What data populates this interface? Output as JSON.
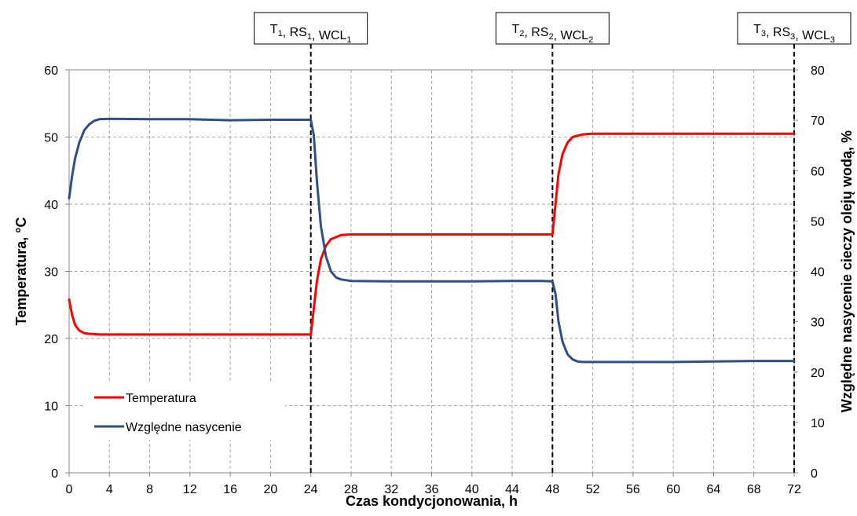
{
  "chart_data": {
    "type": "line",
    "xlabel": "Czas kondycjonowania, h",
    "ylabel_left": "Temperatura, °C",
    "ylabel_right": "Względne nasycenie cieczy olejų wodą, %",
    "xlim": [
      0,
      72
    ],
    "ylim_left": [
      0,
      60
    ],
    "ylim_right": [
      0,
      80
    ],
    "x_ticks": [
      "0",
      "4",
      "8",
      "12",
      "16",
      "20",
      "24",
      "28",
      "32",
      "36",
      "40",
      "44",
      "48",
      "52",
      "56",
      "60",
      "64",
      "68",
      "72"
    ],
    "y_left_ticks": [
      "0",
      "10",
      "20",
      "30",
      "40",
      "50",
      "60"
    ],
    "y_right_ticks": [
      "0",
      "10",
      "20",
      "30",
      "40",
      "50",
      "60",
      "70",
      "80"
    ],
    "grid": true,
    "legend_position": "bottom-left",
    "series": [
      {
        "name": "Temperatura",
        "axis": "left",
        "color": "#ff0000",
        "x": [
          0,
          0.3,
          0.6,
          1,
          1.5,
          2,
          3,
          4,
          8,
          12,
          16,
          20,
          23,
          24,
          24.3,
          24.6,
          25,
          25.5,
          26,
          27,
          28,
          32,
          36,
          40,
          44,
          47,
          48,
          48.3,
          48.6,
          49,
          49.5,
          50,
          51,
          52,
          56,
          60,
          64,
          68,
          72
        ],
        "values": [
          25.8,
          23.5,
          22.0,
          21.2,
          20.8,
          20.7,
          20.6,
          20.6,
          20.6,
          20.6,
          20.6,
          20.6,
          20.6,
          20.6,
          24.5,
          28.5,
          31.8,
          33.8,
          34.8,
          35.4,
          35.5,
          35.5,
          35.5,
          35.5,
          35.5,
          35.5,
          35.5,
          40.0,
          44.5,
          47.5,
          49.2,
          50.0,
          50.4,
          50.5,
          50.5,
          50.5,
          50.5,
          50.5,
          50.5
        ]
      },
      {
        "name": "Względne nasycenie",
        "axis": "right",
        "color": "#2e4f87",
        "x": [
          0,
          0.3,
          0.6,
          1,
          1.5,
          2,
          2.5,
          3,
          4,
          8,
          12,
          16,
          20,
          23,
          24,
          24.3,
          24.6,
          25,
          25.5,
          26,
          26.5,
          27,
          28,
          32,
          36,
          40,
          44,
          47,
          48,
          48.3,
          48.6,
          49,
          49.5,
          50,
          50.5,
          51,
          52,
          56,
          60,
          64,
          68,
          72
        ],
        "values": [
          54.5,
          59.0,
          62.5,
          65.5,
          68.0,
          69.2,
          69.9,
          70.2,
          70.3,
          70.2,
          70.2,
          70.0,
          70.1,
          70.1,
          70.1,
          67.0,
          58.0,
          49.0,
          43.0,
          40.0,
          38.8,
          38.4,
          38.1,
          38.0,
          38.0,
          38.0,
          38.1,
          38.1,
          38.0,
          35.5,
          30.0,
          26.0,
          23.5,
          22.5,
          22.1,
          22.0,
          22.0,
          22.0,
          22.0,
          22.1,
          22.2,
          22.2
        ]
      }
    ],
    "annotations": [
      {
        "x": 24,
        "parts": [
          [
            "T",
            "1"
          ],
          [
            "RS",
            "1"
          ],
          [
            "WCL",
            "1"
          ]
        ]
      },
      {
        "x": 48,
        "parts": [
          [
            "T",
            "2"
          ],
          [
            "RS",
            "2"
          ],
          [
            "WCL",
            "2"
          ]
        ]
      },
      {
        "x": 72,
        "parts": [
          [
            "T",
            "3"
          ],
          [
            "RS",
            "3"
          ],
          [
            "WCL",
            "3"
          ]
        ]
      }
    ]
  }
}
